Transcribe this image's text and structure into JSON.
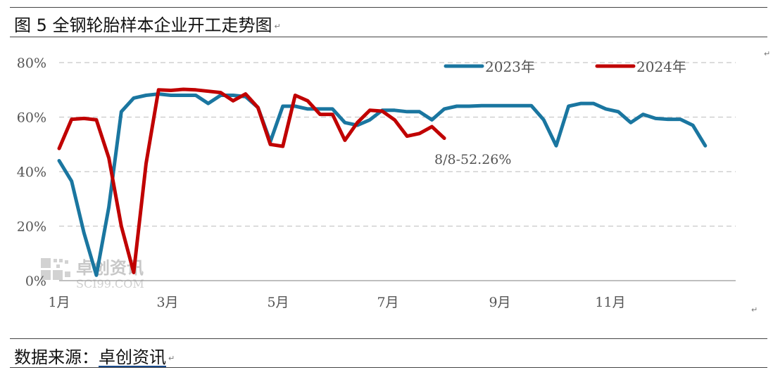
{
  "title": "图 5  全钢轮胎样本企业开工走势图",
  "source_prefix": "数据来源：",
  "source_name": "卓创资讯",
  "paragraph_mark": "↵",
  "watermark": {
    "cn": "卓创资讯",
    "en": "SCI99.COM"
  },
  "colors": {
    "2023": "#1a76a0",
    "2024": "#c00000",
    "grid": "#c8c8c8",
    "axis": "#999999"
  },
  "chart_data": {
    "type": "line",
    "title": "图 5  全钢轮胎样本企业开工走势图",
    "xlabel": "",
    "ylabel": "",
    "x_ticks": [
      "1月",
      "3月",
      "5月",
      "7月",
      "9月",
      "11月"
    ],
    "y_ticks": [
      "0%",
      "20%",
      "40%",
      "60%",
      "80%"
    ],
    "ylim": [
      0,
      80
    ],
    "grid": "horizontal dashed",
    "legend": "top-right",
    "series": [
      {
        "name": "2023年",
        "color": "#1a76a0",
        "week_start": 1,
        "values": [
          44,
          36.5,
          17.5,
          2,
          27,
          62,
          67,
          68,
          68.5,
          68,
          68,
          68,
          65,
          68,
          68,
          67.5,
          63.5,
          51,
          64,
          64,
          63,
          63,
          63,
          58,
          57,
          59,
          62.5,
          62.5,
          62,
          62,
          59,
          63,
          64,
          64,
          64.2,
          64.2,
          64.2,
          64.2,
          64.2,
          59,
          49.5,
          64,
          65,
          65,
          63,
          62,
          58,
          61,
          59.5,
          59.2,
          59.2,
          57,
          49.5
        ]
      },
      {
        "name": "2024年",
        "color": "#c00000",
        "week_start": 1,
        "values": [
          48.5,
          59.2,
          59.5,
          59,
          45,
          20,
          3,
          43,
          70,
          69.8,
          70.2,
          70,
          69.5,
          69,
          66,
          68.5,
          63.5,
          50,
          49.3,
          68,
          66,
          61,
          61,
          51.5,
          58,
          62.5,
          62.2,
          59,
          53,
          54,
          56.5,
          52.26
        ]
      }
    ],
    "annotations": [
      {
        "text": "8/8-52.26%",
        "series": "2024年"
      }
    ]
  }
}
